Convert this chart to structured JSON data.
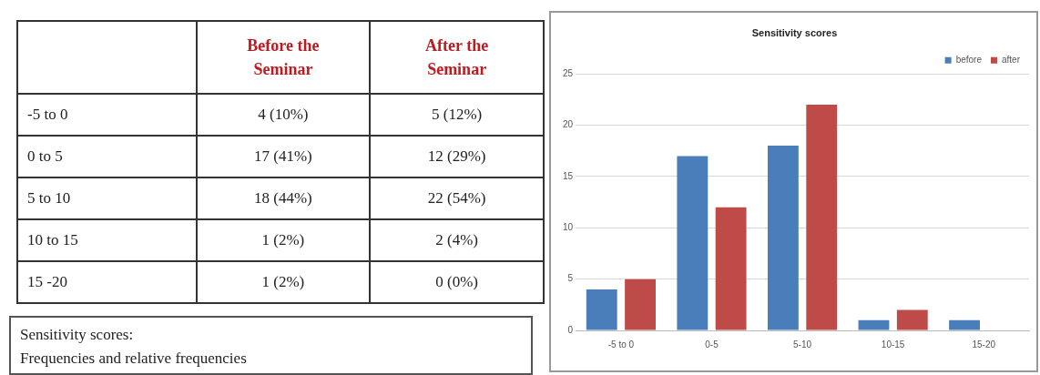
{
  "chart_data": [
    {
      "type": "other",
      "categories": [
        "-5 to 0",
        "0 to 5",
        "5 to 10",
        "10 to 15",
        "15 -20"
      ],
      "series": [
        {
          "name": "Before the Seminar",
          "color": "#c0191f",
          "values": [
            4,
            17,
            18,
            1,
            1
          ],
          "value_labels": [
            "4 (10%)",
            "17 (41%)",
            "18 (44%)",
            "1 (2%)",
            "1 (2%)"
          ]
        },
        {
          "name": "After the Seminar",
          "color": "#c0191f",
          "values": [
            5,
            12,
            22,
            2,
            0
          ],
          "value_labels": [
            "5 (12%)",
            "12 (29%)",
            "22 (54%)",
            "2 (4%)",
            "0 (0%)"
          ]
        }
      ],
      "annotations": [
        "Sensitivity scores:",
        "Frequencies and relative frequencies"
      ]
    },
    {
      "type": "bar",
      "title": "Sensitivity scores",
      "categories": [
        "-5 to 0",
        "0-5",
        "5-10",
        "10-15",
        "15-20"
      ],
      "series": [
        {
          "name": "before",
          "color": "#4a7ebb",
          "values": [
            4,
            17,
            18,
            1,
            1
          ]
        },
        {
          "name": "after",
          "color": "#be4b48",
          "values": [
            5,
            12,
            22,
            2,
            0
          ]
        }
      ],
      "ylim": [
        0,
        25
      ],
      "yticks": [
        0,
        5,
        10,
        15,
        20,
        25
      ],
      "grid": "y",
      "legend": "top right"
    }
  ]
}
